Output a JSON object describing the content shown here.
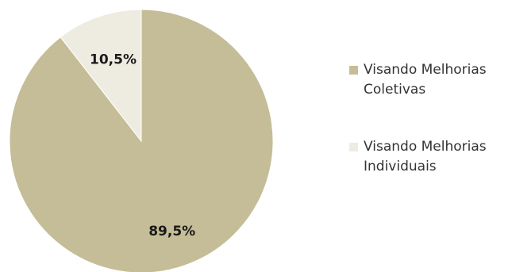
{
  "chart_data": {
    "type": "pie",
    "categories": [
      "Visando Melhorias Coletivas",
      "Visando Melhorias Individuais"
    ],
    "values": [
      89.5,
      10.5
    ],
    "data_labels": [
      "89,5%",
      "10,5%"
    ],
    "colors": [
      "#c4bd97",
      "#eeece1"
    ],
    "title": "",
    "legend_position": "right"
  },
  "legend": {
    "items": [
      {
        "label": "Visando Melhorias Coletivas",
        "color": "#c4bd97"
      },
      {
        "label": "Visando Melhorias Individuais",
        "color": "#eeece1"
      }
    ]
  }
}
